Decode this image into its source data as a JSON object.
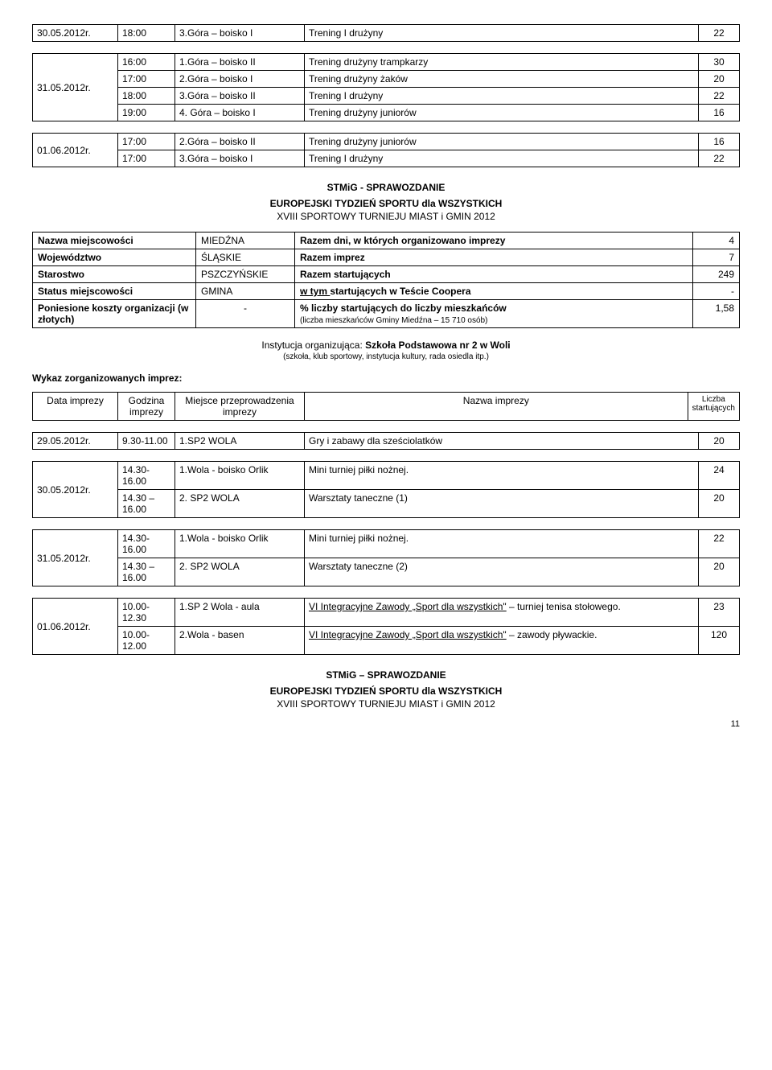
{
  "top1": {
    "date": "30.05.2012r.",
    "r": {
      "t": "18:00",
      "loc": "3.Góra – boisko I",
      "ev": "Trening I drużyny",
      "n": "22"
    }
  },
  "top2": {
    "date": "31.05.2012r.",
    "rows": [
      {
        "t": "16:00",
        "loc": "1.Góra – boisko II",
        "ev": "Trening drużyny trampkarzy",
        "n": "30"
      },
      {
        "t": "17:00",
        "loc": "2.Góra – boisko I",
        "ev": "Trening drużyny żaków",
        "n": "20"
      },
      {
        "t": "18:00",
        "loc": "3.Góra – boisko II",
        "ev": "Trening I drużyny",
        "n": "22"
      },
      {
        "t": "19:00",
        "loc": "4. Góra – boisko I",
        "ev": "Trening drużyny juniorów",
        "n": "16"
      }
    ]
  },
  "top3": {
    "date": "01.06.2012r.",
    "rows": [
      {
        "t": "17:00",
        "loc": "2.Góra – boisko II",
        "ev": "Trening drużyny juniorów",
        "n": "16"
      },
      {
        "t": "17:00",
        "loc": "3.Góra – boisko I",
        "ev": "Trening I drużyny",
        "n": "22"
      }
    ]
  },
  "header": {
    "title": "STMiG - SPRAWOZDANIE",
    "sub1": "EUROPEJSKI TYDZIEŃ SPORTU dla WSZYSTKICH",
    "sub2": "XVIII SPORTOWY TURNIEJU MIAST i GMIN 2012"
  },
  "info": {
    "r1": {
      "k": "Nazwa miejscowości",
      "v": "MIEDŹNA",
      "d": "Razem dni, w których organizowano imprezy",
      "n": "4"
    },
    "r2": {
      "k": "Województwo",
      "v": "ŚLĄSKIE",
      "d": "Razem imprez",
      "n": "7"
    },
    "r3": {
      "k": "Starostwo",
      "v": "PSZCZYŃSKIE",
      "d": "Razem startujących",
      "n": "249"
    },
    "r4": {
      "k": "Status miejscowości",
      "v": "GMINA",
      "d_pre": "w tym ",
      "d": "startujących w Teście Coopera",
      "n": "-"
    },
    "r5": {
      "k": "Poniesione koszty organizacji (w złotych)",
      "v": "-",
      "d": "% liczby startujących do liczby mieszkańców",
      "d_note": "(liczba mieszkańców Gminy Miedźna – 15 710 osób)",
      "n": "1,58"
    }
  },
  "inst": {
    "line_pre": "Instytucja organizując",
    "line_post": "a: ",
    "line_bold": "Szkoła Podstawowa nr 2 w Woli",
    "note": "(szkoła, klub sportowy, instytucja kultury, rada osiedla itp.)"
  },
  "wykaz": "Wykaz zorganizowanych imprez:",
  "hdr": {
    "c1": "Data imprezy",
    "c2": "Godzina imprezy",
    "c3": "Miejsce przeprowadzenia imprezy",
    "c4": "Nazwa imprezy",
    "c5": "Liczba startujących"
  },
  "ev1": {
    "date": "29.05.2012r.",
    "r": {
      "t": "9.30-11.00",
      "loc": "1.SP2 WOLA",
      "ev": "Gry i zabawy dla sześciolatków",
      "n": "20"
    }
  },
  "ev2": {
    "date": "30.05.2012r.",
    "rows": [
      {
        "t": "14.30-16.00",
        "loc": "1.Wola - boisko Orlik",
        "ev": "Mini turniej piłki nożnej.",
        "n": "24"
      },
      {
        "t": "14.30 – 16.00",
        "loc": "2. SP2 WOLA",
        "ev": "Warsztaty taneczne (1)",
        "n": "20"
      }
    ]
  },
  "ev3": {
    "date": "31.05.2012r.",
    "rows": [
      {
        "t": "14.30-16.00",
        "loc": "1.Wola - boisko Orlik",
        "ev": "Mini turniej piłki nożnej.",
        "n": "22"
      },
      {
        "t": "14.30 – 16.00",
        "loc": "2. SP2 WOLA",
        "ev": " Warsztaty taneczne (2)",
        "n": "20"
      }
    ]
  },
  "ev4": {
    "date": "01.06.2012r.",
    "rows": [
      {
        "t": "10.00-12.30",
        "loc": "1.SP 2 Wola - aula",
        "ev_link": "VI Integracyjne Zawody „Sport dla wszystkich\"",
        "ev_tail": " – turniej tenisa stołowego.",
        "n": "23"
      },
      {
        "t": "10.00-12.00",
        "loc": "2.Wola - basen",
        "ev_link": "VI Integracyjne Zawody „Sport dla wszystkich\"",
        "ev_tail": " – zawody pływackie.",
        "n": "120"
      }
    ]
  },
  "footer": {
    "title": "STMiG – SPRAWOZDANIE",
    "sub1": "EUROPEJSKI TYDZIEŃ SPORTU dla WSZYSTKICH",
    "sub2": "XVIII SPORTOWY TURNIEJU MIAST i GMIN 2012"
  },
  "pagenum": "11"
}
